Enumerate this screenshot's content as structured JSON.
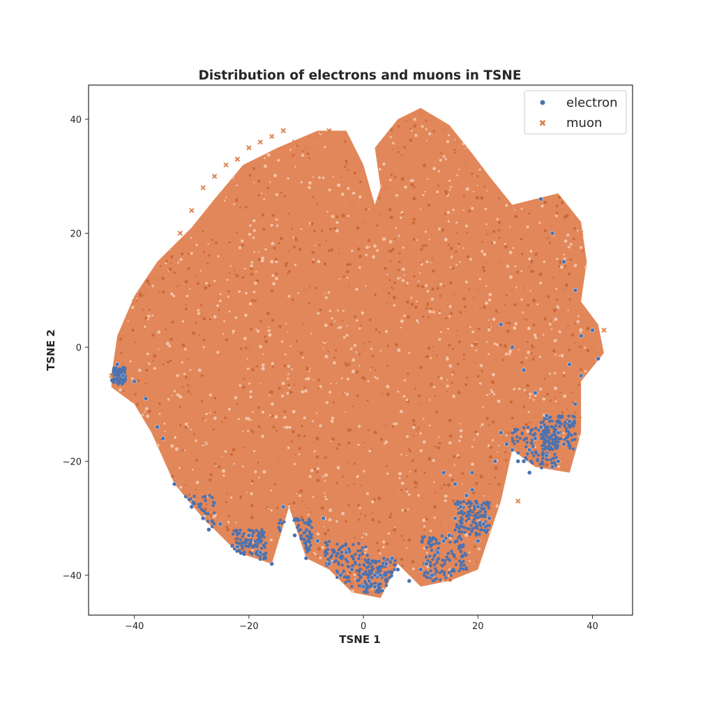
{
  "chart_data": {
    "type": "scatter",
    "title": "Distribution of electrons and muons in TSNE",
    "xlabel": "TSNE 1",
    "ylabel": "TSNE 2",
    "xlim": [
      -48,
      47
    ],
    "ylim": [
      -47,
      46
    ],
    "xticks": [
      -40,
      -20,
      0,
      20,
      40
    ],
    "yticks": [
      -40,
      -20,
      0,
      20,
      40
    ],
    "xtick_labels": [
      "−40",
      "−20",
      "0",
      "20",
      "40"
    ],
    "ytick_labels": [
      "−40",
      "−20",
      "0",
      "20",
      "40"
    ],
    "grid": false,
    "legend_position": "top-right",
    "series": [
      {
        "name": "electron",
        "marker": "circle",
        "color": "#4c72b0",
        "x": [
          -40,
          -38,
          -36,
          -33,
          -30,
          -28,
          -27,
          -25,
          -22,
          -20,
          -18,
          -16,
          -14,
          -12,
          -10,
          -8,
          -6,
          -4,
          -2,
          0,
          1,
          2,
          3,
          4,
          5,
          6,
          8,
          10,
          11,
          12,
          13,
          14,
          15,
          16,
          17,
          18,
          19,
          20,
          21,
          22,
          24,
          25,
          26,
          27,
          28,
          29,
          30,
          31,
          32,
          33,
          34,
          35,
          36,
          37,
          38,
          -43,
          -42,
          -35,
          24,
          26,
          28,
          30,
          32,
          34,
          36,
          38,
          40,
          41,
          2,
          -3,
          -7,
          19,
          23,
          29,
          31,
          33,
          35,
          37,
          14,
          16,
          18,
          20
        ],
        "y": [
          -6,
          -9,
          -14,
          -24,
          -28,
          -30,
          -32,
          -31,
          -35,
          -33,
          -36,
          -38,
          -28,
          -33,
          -37,
          -34,
          -38,
          -40,
          -39,
          -42,
          -41,
          -42,
          -40,
          -38,
          -37,
          -39,
          -41,
          -39,
          -38,
          -40,
          -36,
          -34,
          -33,
          -30,
          -28,
          -26,
          -22,
          -34,
          -31,
          -30,
          -15,
          -17,
          -18,
          -20,
          -20,
          -18,
          -16,
          -14,
          -19,
          -21,
          -20,
          -17,
          -13,
          -10,
          -5,
          -3,
          -5,
          -16,
          4,
          0,
          -4,
          -8,
          -12,
          -15,
          -3,
          2,
          3,
          -2,
          -40,
          -36,
          -30,
          -25,
          -20,
          -22,
          26,
          20,
          15,
          10,
          -22,
          -24,
          -26,
          -28
        ]
      },
      {
        "name": "muon",
        "marker": "x",
        "color": "#dd8452",
        "x": [
          -44,
          -42,
          -40,
          -38,
          -36,
          -34,
          -32,
          -30,
          -28,
          -26,
          -24,
          -22,
          -20,
          -18,
          -16,
          -14,
          -12,
          -10,
          -8,
          -6,
          -4,
          -2,
          0,
          2,
          4,
          6,
          8,
          10,
          12,
          14,
          16,
          18,
          20,
          22,
          24,
          26,
          28,
          30,
          32,
          34,
          36,
          38,
          40,
          42,
          -20,
          -10,
          0,
          10,
          20,
          30,
          -30,
          -15,
          5,
          15,
          25,
          35,
          8,
          12,
          27
        ],
        "y": [
          -5,
          2,
          8,
          10,
          12,
          16,
          20,
          24,
          28,
          30,
          32,
          33,
          35,
          36,
          37,
          38,
          36,
          35,
          37,
          38,
          30,
          25,
          22,
          24,
          28,
          35,
          40,
          41,
          40,
          38,
          36,
          32,
          28,
          20,
          15,
          10,
          5,
          0,
          -5,
          -10,
          0,
          20,
          0,
          3,
          0,
          10,
          0,
          -10,
          10,
          -12,
          -15,
          -20,
          -25,
          -20,
          -15,
          10,
          30,
          15,
          -27
        ]
      }
    ]
  }
}
